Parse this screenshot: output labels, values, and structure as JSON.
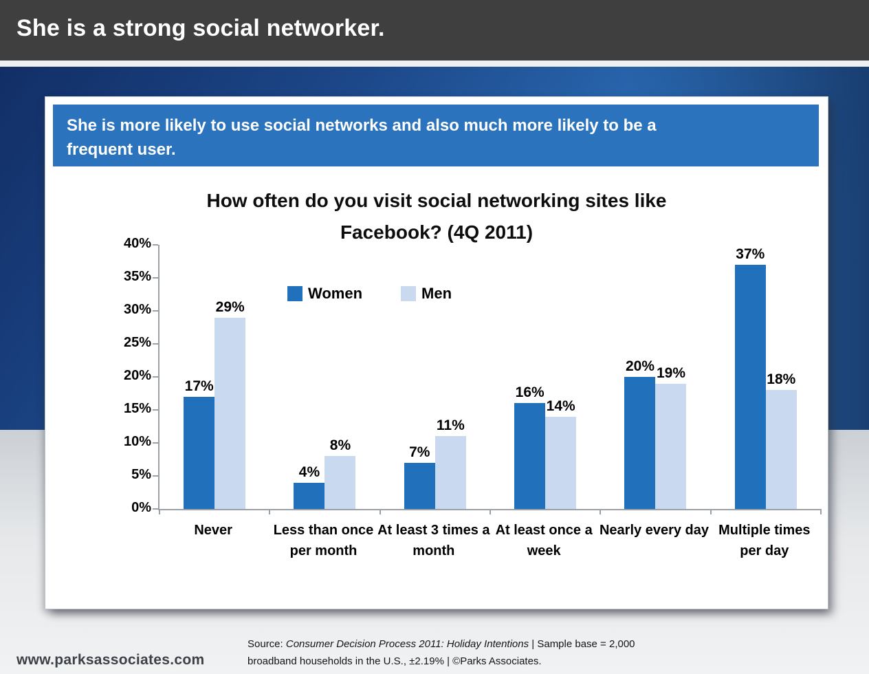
{
  "header": {
    "title": "She is a strong social networker."
  },
  "banner": {
    "text": "She is more likely to use social networks and also much more likely to be a\nfrequent user.",
    "background": "#2b73bc"
  },
  "chart_data": {
    "type": "bar",
    "title": "How often do you visit social networking sites like\nFacebook? (4Q 2011)",
    "categories": [
      "Never",
      "Less than once per month",
      "At least 3 times a month",
      "At least once a week",
      "Nearly every day",
      "Multiple times per day"
    ],
    "series": [
      {
        "name": "Women",
        "color": "#2070bb",
        "values": [
          17,
          4,
          7,
          16,
          20,
          37
        ]
      },
      {
        "name": "Men",
        "color": "#c9d9ef",
        "values": [
          29,
          8,
          11,
          14,
          19,
          18
        ]
      }
    ],
    "value_suffix": "%",
    "xlabel": "",
    "ylabel": "",
    "ylim": [
      0,
      40
    ],
    "ytick_step": 5,
    "ytick_labels": [
      "40%",
      "35%",
      "30%",
      "25%",
      "20%",
      "15%",
      "10%",
      "5%",
      "0%"
    ],
    "grid": false,
    "legend_position": "top-center",
    "axis_color": "#9aa0a6"
  },
  "footer": {
    "website": "www.parksassociates.com",
    "source_prefix": "Source: ",
    "source_italic": "Consumer Decision Process 2011: Holiday Intentions",
    "source_suffix": " | Sample base = 2,000",
    "source_line2": "broadband households in the U.S., ±2.19% | ©Parks Associates."
  },
  "colors": {
    "header_bar": "#3f3f3f",
    "background_blue_dark": "#122e66",
    "background_blue_light": "#2f74c0",
    "background_gray": "#cbd0d5",
    "card": "#ffffff",
    "women_bar": "#2070bb",
    "men_bar": "#c9d9ef"
  }
}
